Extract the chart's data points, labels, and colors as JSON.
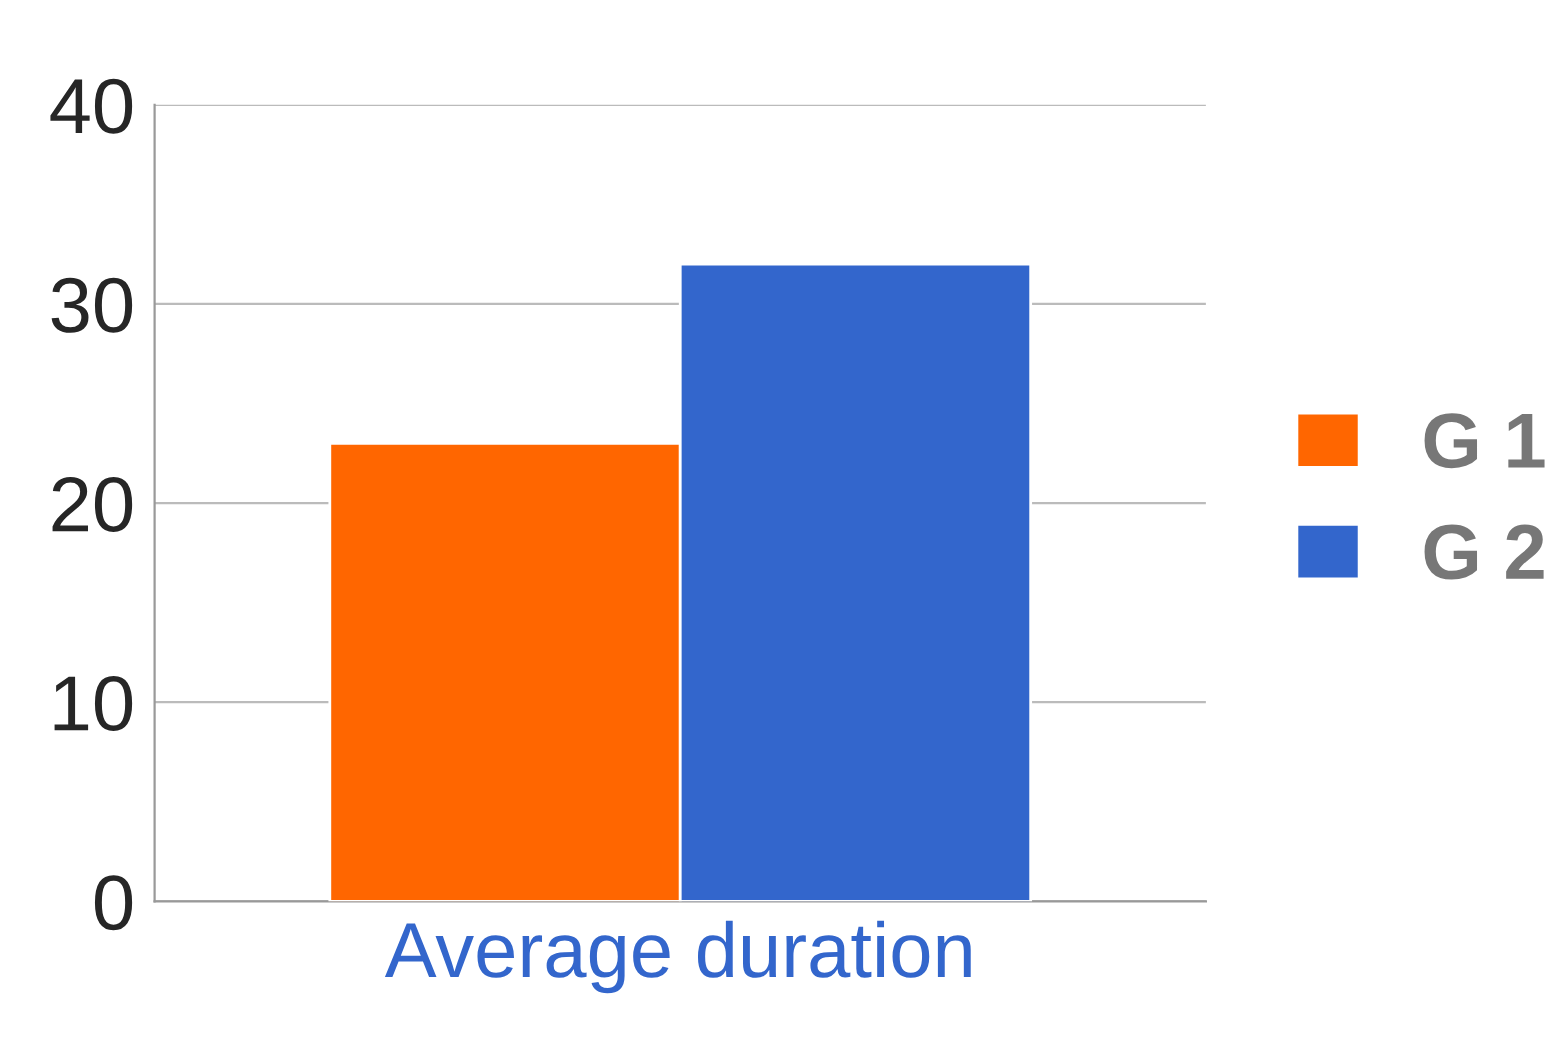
{
  "chart_data": {
    "type": "bar",
    "categories": [
      "Average duration"
    ],
    "series": [
      {
        "name": "G 1",
        "color": "#ff6600",
        "values": [
          23
        ]
      },
      {
        "name": "G 2",
        "color": "#3366cc",
        "values": [
          32
        ]
      }
    ],
    "ylim": [
      0,
      40
    ],
    "yticks": [
      0,
      10,
      20,
      30,
      40
    ],
    "grid": "y",
    "legend": "right"
  }
}
